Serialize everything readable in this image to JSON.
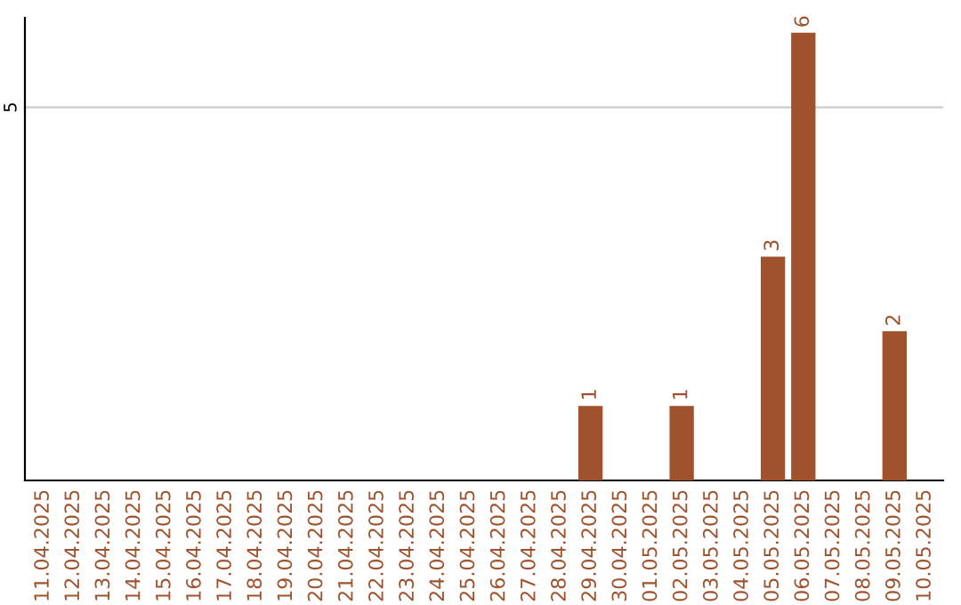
{
  "chart_data": {
    "type": "bar",
    "categories": [
      "11.04.2025",
      "12.04.2025",
      "13.04.2025",
      "14.04.2025",
      "15.04.2025",
      "16.04.2025",
      "17.04.2025",
      "18.04.2025",
      "19.04.2025",
      "20.04.2025",
      "21.04.2025",
      "22.04.2025",
      "23.04.2025",
      "24.04.2025",
      "25.04.2025",
      "26.04.2025",
      "27.04.2025",
      "28.04.2025",
      "29.04.2025",
      "30.04.2025",
      "01.05.2025",
      "02.05.2025",
      "03.05.2025",
      "04.05.2025",
      "05.05.2025",
      "06.05.2025",
      "07.05.2025",
      "08.05.2025",
      "09.05.2025",
      "10.05.2025"
    ],
    "values": [
      null,
      null,
      null,
      null,
      null,
      null,
      null,
      null,
      null,
      null,
      null,
      null,
      null,
      null,
      null,
      null,
      null,
      null,
      1,
      null,
      null,
      1,
      null,
      null,
      3,
      6,
      null,
      null,
      2,
      null
    ],
    "value_labels": [
      null,
      null,
      null,
      null,
      null,
      null,
      null,
      null,
      null,
      null,
      null,
      null,
      null,
      null,
      null,
      null,
      null,
      null,
      "1",
      null,
      null,
      "1",
      null,
      null,
      "3",
      "6",
      null,
      null,
      "2",
      null
    ],
    "color": "#a0522d",
    "ylim": [
      0,
      6.2
    ],
    "ref_lines": [
      {
        "axis": "y",
        "value": 5,
        "label": "5",
        "color": "#cccccc"
      }
    ]
  }
}
